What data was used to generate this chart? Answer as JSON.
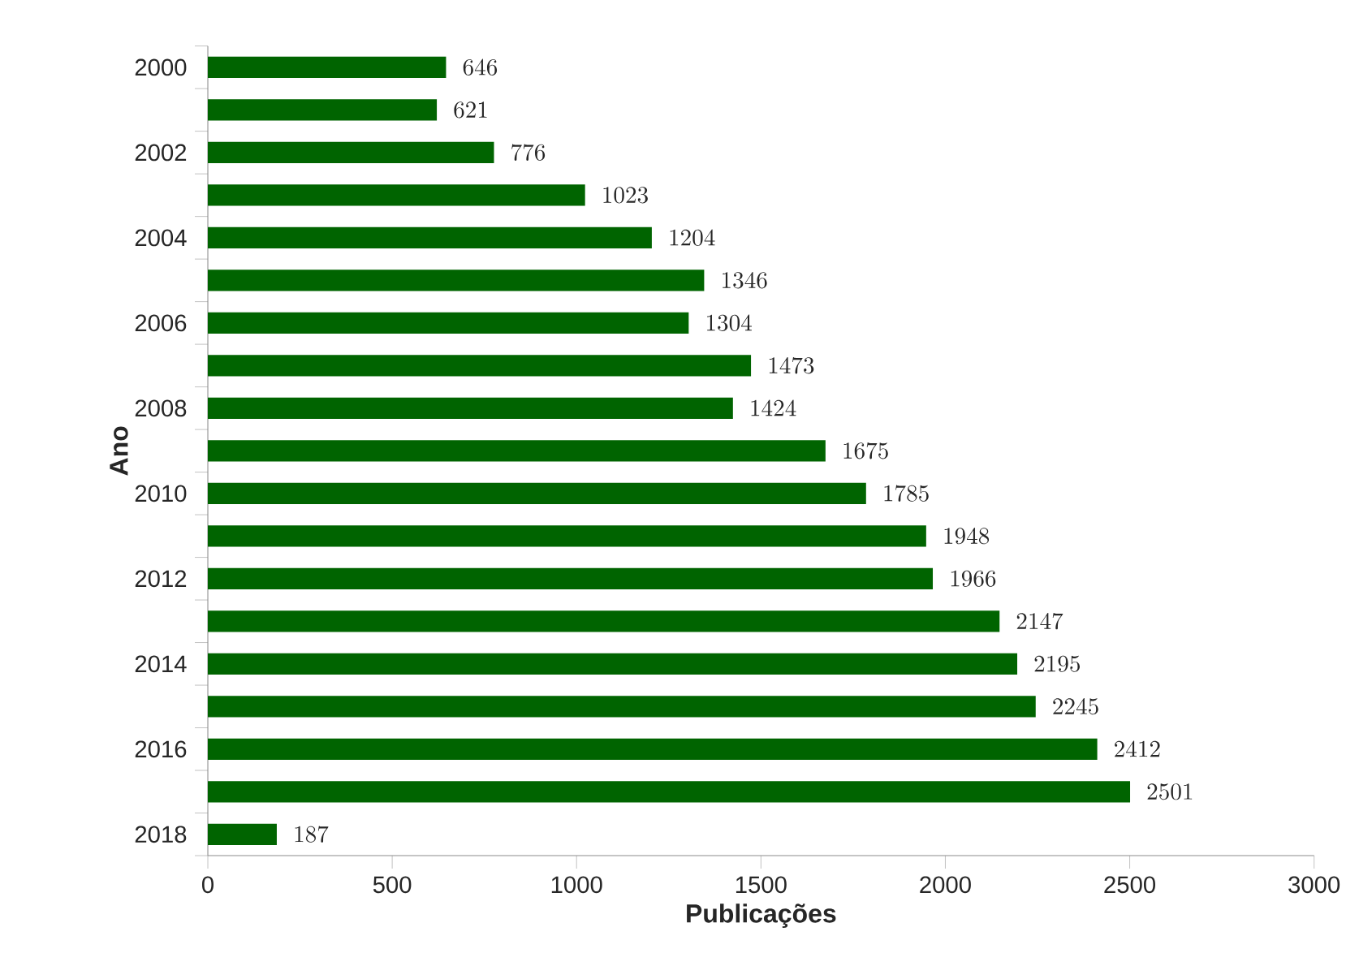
{
  "chart_data": {
    "type": "bar",
    "orientation": "horizontal",
    "xlabel": "Publicações",
    "ylabel": "Ano",
    "categories": [
      "2000",
      null,
      "2002",
      null,
      "2004",
      null,
      "2006",
      null,
      "2008",
      null,
      "2010",
      null,
      "2012",
      null,
      "2014",
      null,
      "2016",
      null,
      "2018"
    ],
    "values": [
      646,
      621,
      776,
      1023,
      1204,
      1346,
      1304,
      1473,
      1424,
      1675,
      1785,
      1948,
      1966,
      2147,
      2195,
      2245,
      2412,
      2501,
      187
    ],
    "color": "#006400",
    "xlim": [
      0,
      3000
    ],
    "xticks": [
      0,
      500,
      1000,
      1500,
      2000,
      2500,
      3000
    ],
    "data_labels": true
  }
}
